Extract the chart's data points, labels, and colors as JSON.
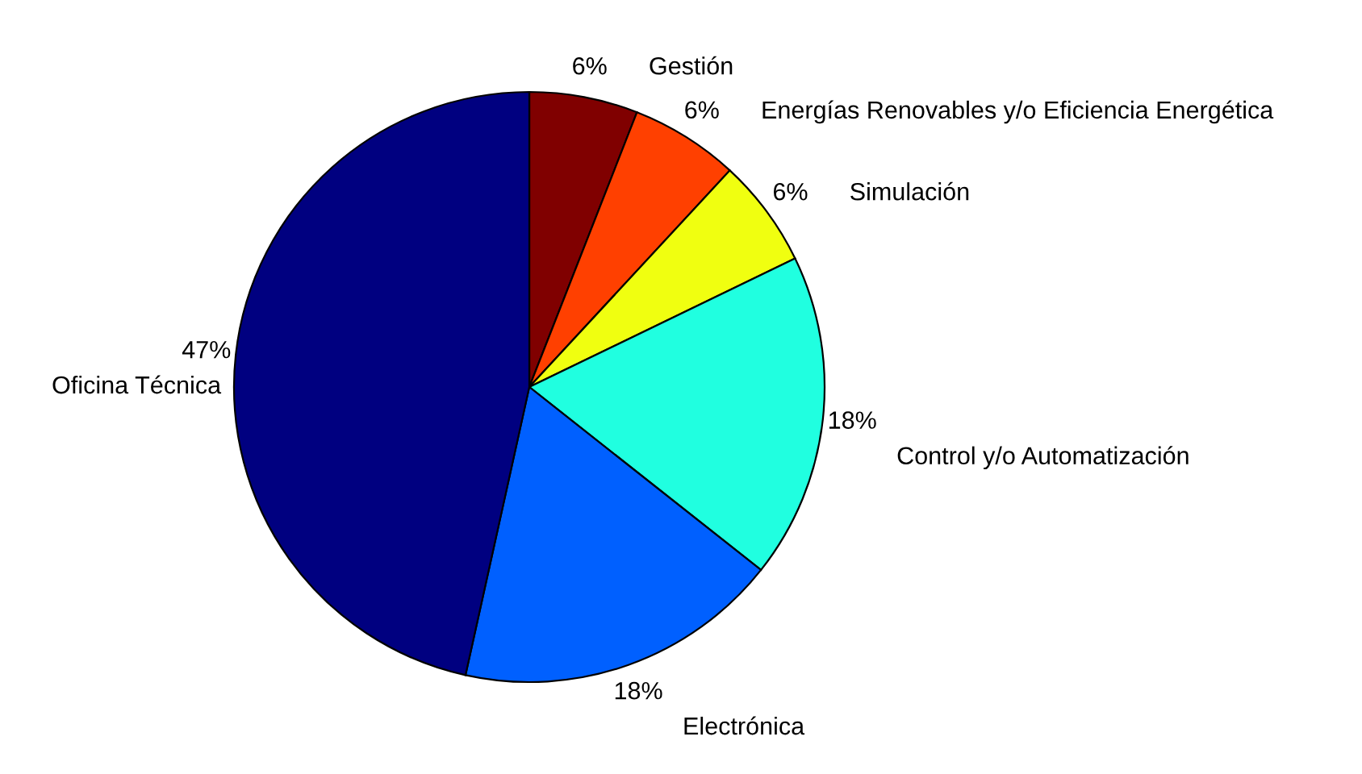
{
  "chart_data": {
    "type": "pie",
    "categories": [
      "Gestión",
      "Energías Renovables y/o Eficiencia Energética",
      "Simulación",
      "Control y/o Automatización",
      "Electrónica",
      "Oficina Técnica"
    ],
    "values": [
      6,
      6,
      6,
      18,
      18,
      47
    ],
    "value_labels": [
      "6%",
      "6%",
      "6%",
      "18%",
      "18%",
      "47%"
    ],
    "colors": [
      "#800000",
      "#ff4000",
      "#f0ff10",
      "#20ffe0",
      "#0060ff",
      "#000080"
    ]
  }
}
